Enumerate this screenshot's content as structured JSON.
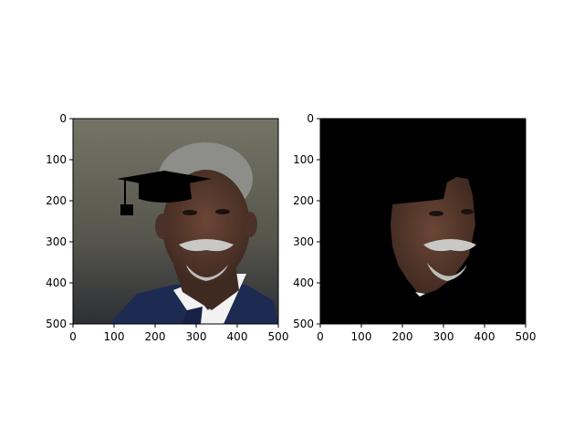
{
  "chart_data": [
    {
      "type": "image",
      "image_subject": "portrait photograph with graduation cap overlay",
      "xlim": [
        0,
        500
      ],
      "ylim": [
        500,
        0
      ],
      "xticks": [
        0,
        100,
        200,
        300,
        400,
        500
      ],
      "yticks": [
        0,
        100,
        200,
        300,
        400,
        500
      ],
      "xtick_labels": [
        "0",
        "100",
        "200",
        "300",
        "400",
        "500"
      ],
      "ytick_labels": [
        "0",
        "100",
        "200",
        "300",
        "400",
        "500"
      ],
      "colors": {
        "background_top": "#6d6d5f",
        "background_bottom": "#2e3136",
        "suit": "#1d2a52",
        "shirt": "#f4f4f4",
        "skin": "#5a3a2c",
        "hair": "#9a9a9a",
        "cap": "#000000"
      }
    },
    {
      "type": "image",
      "image_subject": "face cutout on black background",
      "xlim": [
        0,
        500
      ],
      "ylim": [
        500,
        0
      ],
      "xticks": [
        0,
        100,
        200,
        300,
        400,
        500
      ],
      "yticks": [
        0,
        100,
        200,
        300,
        400,
        500
      ],
      "xtick_labels": [
        "0",
        "100",
        "200",
        "300",
        "400",
        "500"
      ],
      "ytick_labels": [
        "0",
        "100",
        "200",
        "300",
        "400",
        "500"
      ],
      "colors": {
        "background": "#000000",
        "skin": "#5a3a2c"
      }
    }
  ]
}
